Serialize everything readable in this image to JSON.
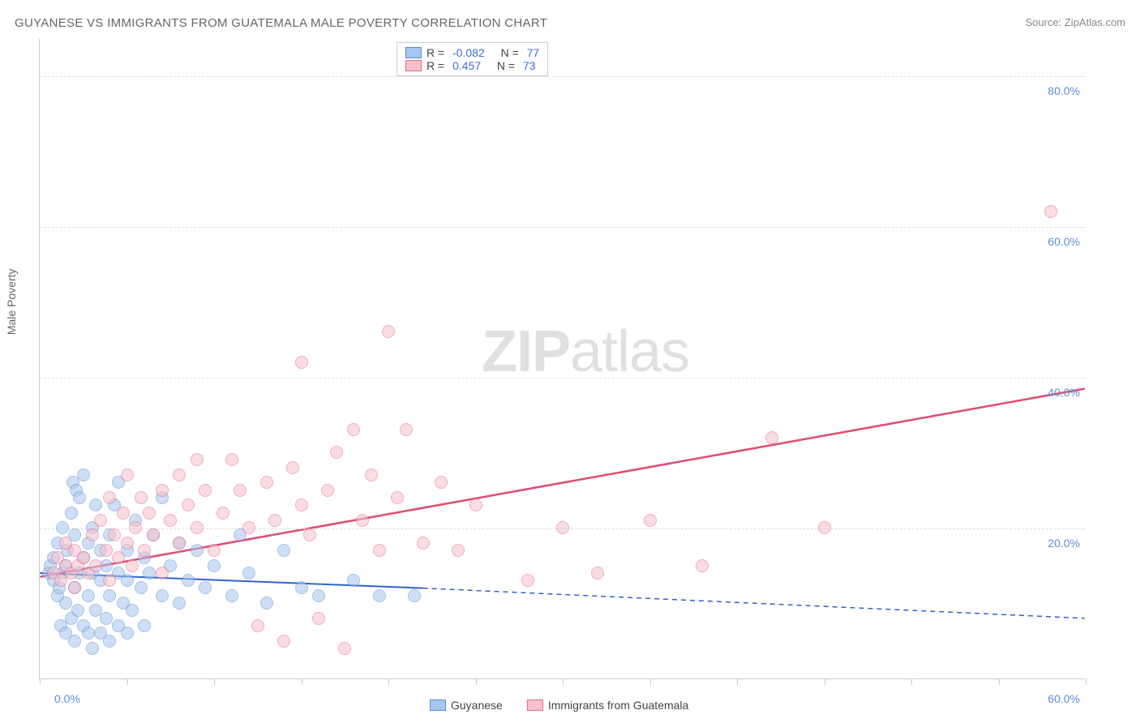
{
  "title": "GUYANESE VS IMMIGRANTS FROM GUATEMALA MALE POVERTY CORRELATION CHART",
  "source_label": "Source: ZipAtlas.com",
  "y_axis_label": "Male Poverty",
  "watermark_zip": "ZIP",
  "watermark_atlas": "atlas",
  "chart": {
    "type": "scatter",
    "background_color": "#ffffff",
    "grid_color": "#dddddd",
    "axis_color": "#cccccc",
    "tick_label_color": "#5b8fd6",
    "xlim": [
      0,
      60
    ],
    "ylim": [
      0,
      85
    ],
    "y_ticks": [
      20,
      40,
      60,
      80
    ],
    "y_tick_labels": [
      "20.0%",
      "40.0%",
      "60.0%",
      "80.0%"
    ],
    "x_ticks": [
      0,
      5,
      10,
      15,
      20,
      25,
      30,
      35,
      40,
      45,
      50,
      55,
      60
    ],
    "x_tick_labels_shown": {
      "0": "0.0%",
      "60": "60.0%"
    },
    "marker_radius": 8,
    "marker_stroke_width": 1.5,
    "series": [
      {
        "name": "Guyanese",
        "fill_color": "#a7c6ed",
        "stroke_color": "#5b8fd6",
        "fill_opacity": 0.55,
        "R": "-0.082",
        "N": "77",
        "trend": {
          "color": "#2f63c9",
          "width": 2,
          "x1": 0,
          "y1": 14.0,
          "x2": 22,
          "y2": 12.0,
          "dash_from_x": 22,
          "dash_to_x": 60,
          "dash_to_y": 8.0
        },
        "points": [
          [
            0.5,
            14
          ],
          [
            0.6,
            15
          ],
          [
            0.8,
            13
          ],
          [
            0.8,
            16
          ],
          [
            1.0,
            11
          ],
          [
            1.0,
            18
          ],
          [
            1.1,
            12
          ],
          [
            1.2,
            7
          ],
          [
            1.3,
            14
          ],
          [
            1.3,
            20
          ],
          [
            1.5,
            6
          ],
          [
            1.5,
            10
          ],
          [
            1.5,
            15
          ],
          [
            1.6,
            17
          ],
          [
            1.8,
            8
          ],
          [
            1.8,
            22
          ],
          [
            1.9,
            26
          ],
          [
            2.0,
            5
          ],
          [
            2.0,
            12
          ],
          [
            2.0,
            19
          ],
          [
            2.1,
            25
          ],
          [
            2.2,
            9
          ],
          [
            2.3,
            14
          ],
          [
            2.3,
            24
          ],
          [
            2.5,
            7
          ],
          [
            2.5,
            16
          ],
          [
            2.5,
            27
          ],
          [
            2.8,
            6
          ],
          [
            2.8,
            11
          ],
          [
            2.8,
            18
          ],
          [
            3.0,
            4
          ],
          [
            3.0,
            14
          ],
          [
            3.0,
            20
          ],
          [
            3.2,
            9
          ],
          [
            3.2,
            23
          ],
          [
            3.5,
            6
          ],
          [
            3.5,
            13
          ],
          [
            3.5,
            17
          ],
          [
            3.8,
            8
          ],
          [
            3.8,
            15
          ],
          [
            4.0,
            5
          ],
          [
            4.0,
            11
          ],
          [
            4.0,
            19
          ],
          [
            4.3,
            23
          ],
          [
            4.5,
            7
          ],
          [
            4.5,
            14
          ],
          [
            4.5,
            26
          ],
          [
            4.8,
            10
          ],
          [
            5.0,
            6
          ],
          [
            5.0,
            13
          ],
          [
            5.0,
            17
          ],
          [
            5.3,
            9
          ],
          [
            5.5,
            21
          ],
          [
            5.8,
            12
          ],
          [
            6.0,
            7
          ],
          [
            6.0,
            16
          ],
          [
            6.3,
            14
          ],
          [
            6.5,
            19
          ],
          [
            7.0,
            24
          ],
          [
            7.0,
            11
          ],
          [
            7.5,
            15
          ],
          [
            8.0,
            10
          ],
          [
            8.0,
            18
          ],
          [
            8.5,
            13
          ],
          [
            9.0,
            17
          ],
          [
            9.5,
            12
          ],
          [
            10.0,
            15
          ],
          [
            11.0,
            11
          ],
          [
            11.5,
            19
          ],
          [
            12.0,
            14
          ],
          [
            13.0,
            10
          ],
          [
            14.0,
            17
          ],
          [
            15.0,
            12
          ],
          [
            16.0,
            11
          ],
          [
            18.0,
            13
          ],
          [
            19.5,
            11
          ],
          [
            21.5,
            11
          ]
        ]
      },
      {
        "name": "Immigrants from Guatemala",
        "fill_color": "#f6c1cd",
        "stroke_color": "#e86a8a",
        "fill_opacity": 0.55,
        "R": "0.457",
        "N": "73",
        "trend": {
          "color": "#e24b73",
          "width": 2.5,
          "x1": 0,
          "y1": 13.5,
          "x2": 60,
          "y2": 38.5
        },
        "points": [
          [
            0.8,
            14
          ],
          [
            1.0,
            16
          ],
          [
            1.2,
            13
          ],
          [
            1.5,
            15
          ],
          [
            1.5,
            18
          ],
          [
            1.8,
            14
          ],
          [
            2.0,
            12
          ],
          [
            2.0,
            17
          ],
          [
            2.2,
            15
          ],
          [
            2.5,
            16
          ],
          [
            2.8,
            14
          ],
          [
            3.0,
            19
          ],
          [
            3.2,
            15
          ],
          [
            3.5,
            21
          ],
          [
            3.8,
            17
          ],
          [
            4.0,
            13
          ],
          [
            4.0,
            24
          ],
          [
            4.3,
            19
          ],
          [
            4.5,
            16
          ],
          [
            4.8,
            22
          ],
          [
            5.0,
            18
          ],
          [
            5.0,
            27
          ],
          [
            5.3,
            15
          ],
          [
            5.5,
            20
          ],
          [
            5.8,
            24
          ],
          [
            6.0,
            17
          ],
          [
            6.3,
            22
          ],
          [
            6.5,
            19
          ],
          [
            7.0,
            14
          ],
          [
            7.0,
            25
          ],
          [
            7.5,
            21
          ],
          [
            8.0,
            18
          ],
          [
            8.0,
            27
          ],
          [
            8.5,
            23
          ],
          [
            9.0,
            20
          ],
          [
            9.0,
            29
          ],
          [
            9.5,
            25
          ],
          [
            10.0,
            17
          ],
          [
            10.5,
            22
          ],
          [
            11.0,
            29
          ],
          [
            11.5,
            25
          ],
          [
            12.0,
            20
          ],
          [
            12.5,
            7
          ],
          [
            13.0,
            26
          ],
          [
            13.5,
            21
          ],
          [
            14.0,
            5
          ],
          [
            14.5,
            28
          ],
          [
            15.0,
            23
          ],
          [
            15.0,
            42
          ],
          [
            15.5,
            19
          ],
          [
            16.0,
            8
          ],
          [
            16.5,
            25
          ],
          [
            17.0,
            30
          ],
          [
            17.5,
            4
          ],
          [
            18.0,
            33
          ],
          [
            18.5,
            21
          ],
          [
            19.0,
            27
          ],
          [
            19.5,
            17
          ],
          [
            20.0,
            46
          ],
          [
            20.5,
            24
          ],
          [
            21.0,
            33
          ],
          [
            22.0,
            18
          ],
          [
            23.0,
            26
          ],
          [
            24.0,
            17
          ],
          [
            25.0,
            23
          ],
          [
            28.0,
            13
          ],
          [
            30.0,
            20
          ],
          [
            32.0,
            14
          ],
          [
            35.0,
            21
          ],
          [
            38.0,
            15
          ],
          [
            42.0,
            32
          ],
          [
            45.0,
            20
          ],
          [
            58.0,
            62
          ]
        ]
      }
    ]
  },
  "legend_top": {
    "r_label": "R =",
    "n_label": "N ="
  },
  "legend_bottom": {
    "items": [
      "Guyanese",
      "Immigrants from Guatemala"
    ]
  }
}
